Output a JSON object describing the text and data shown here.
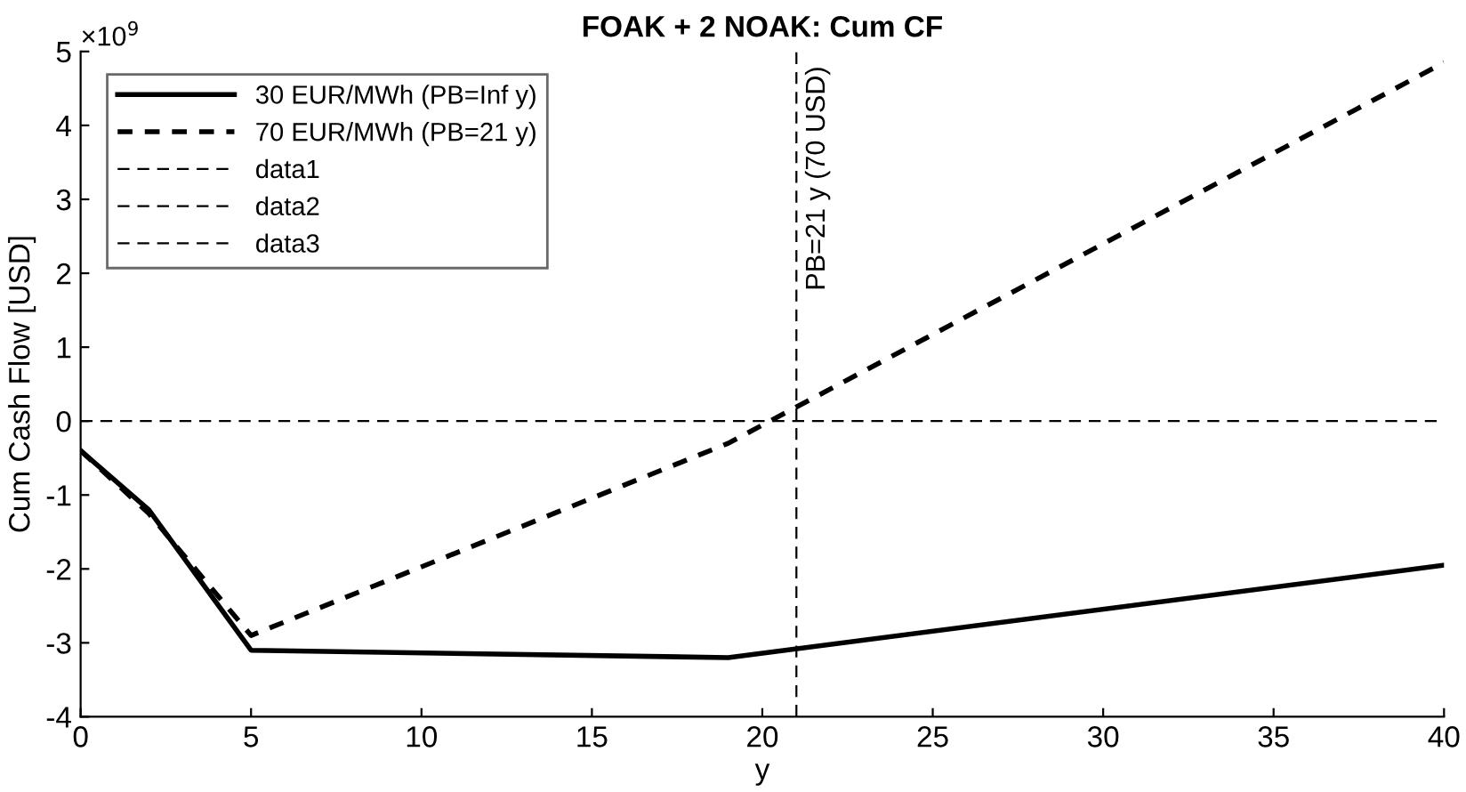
{
  "chart_data": {
    "type": "line",
    "title": "FOAK + 2 NOAK: Cum CF",
    "xlabel": "y",
    "ylabel": "Cum Cash Flow [USD]",
    "xlim": [
      0,
      40
    ],
    "xticks": [
      0,
      5,
      10,
      15,
      20,
      25,
      30,
      35,
      40
    ],
    "ylim": [
      -4,
      5
    ],
    "yticks": [
      -4,
      -3,
      -2,
      -1,
      0,
      1,
      2,
      3,
      4,
      5
    ],
    "legend": "top left",
    "grid": false,
    "series": [
      {
        "name": "30 EUR/MWh (PB=Inf y)",
        "color": "#000000",
        "line_style": "solid",
        "x": [
          0,
          2,
          5,
          19,
          40
        ],
        "values": [
          -0.4,
          -1.2,
          -3.1,
          -3.2,
          -1.95
        ]
      },
      {
        "name": "70 EUR/MWh (PB=21 y)",
        "color": "#000000",
        "line_style": "dashed",
        "x": [
          0,
          2,
          5,
          19,
          40
        ],
        "values": [
          -0.4,
          -1.25,
          -2.9,
          -0.3,
          4.85
        ]
      },
      {
        "name": "data1",
        "color": "#000000",
        "line_style": "dashed",
        "x": [
          0,
          40
        ],
        "values": [
          0,
          0
        ]
      },
      {
        "name": "data2",
        "color": "#000000",
        "line_style": "dashed",
        "x": [
          21,
          21
        ],
        "values": [
          -4,
          5
        ]
      },
      {
        "name": "data3",
        "color": "#000000",
        "line_style": "dashed"
      }
    ],
    "annotations": [
      "×10$^{9}$",
      {
        "text": "PB=21 y (70 USD)",
        "x": 21,
        "y": 5
      }
    ]
  }
}
